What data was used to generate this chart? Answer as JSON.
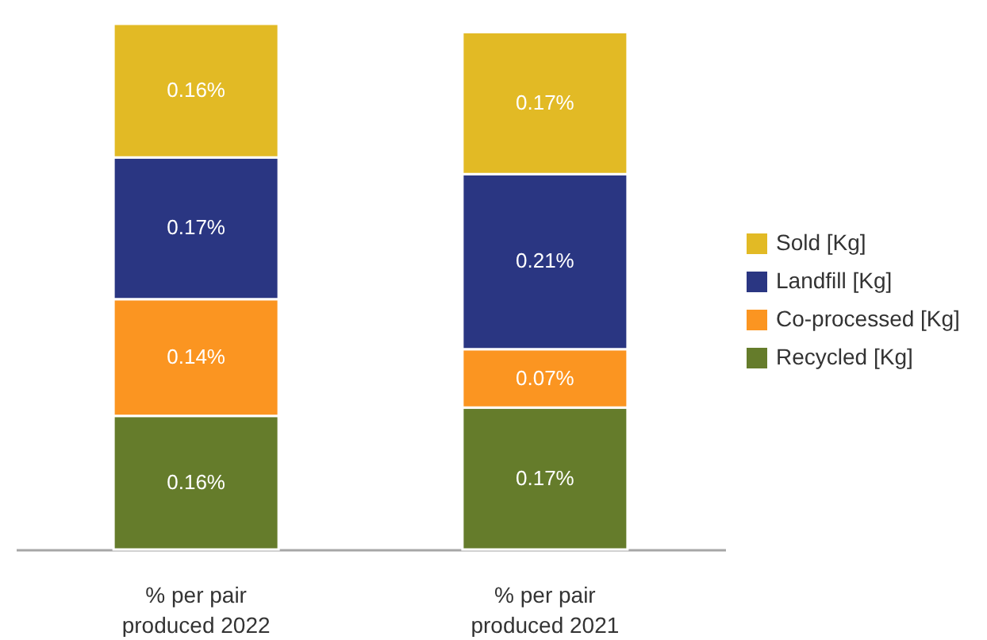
{
  "chart_data": {
    "type": "bar",
    "stacked": true,
    "categories": [
      "% per pair produced 2022",
      "% per pair produced 2021"
    ],
    "series": [
      {
        "name": "Recycled [Kg]",
        "color": "#657c2b",
        "values": [
          0.16,
          0.17
        ],
        "value_labels": [
          "0.16%",
          "0.17%"
        ]
      },
      {
        "name": "Co-processed [Kg]",
        "color": "#fb9521",
        "values": [
          0.14,
          0.07
        ],
        "value_labels": [
          "0.14%",
          "0.07%"
        ]
      },
      {
        "name": "Landfill [Kg]",
        "color": "#2a3682",
        "values": [
          0.17,
          0.21
        ],
        "value_labels": [
          "0.17%",
          "0.21%"
        ]
      },
      {
        "name": "Sold [Kg]",
        "color": "#e2ba25",
        "values": [
          0.16,
          0.17
        ],
        "value_labels": [
          "0.16%",
          "0.17%"
        ]
      }
    ],
    "legend": "right",
    "tick_labels": "x"
  }
}
